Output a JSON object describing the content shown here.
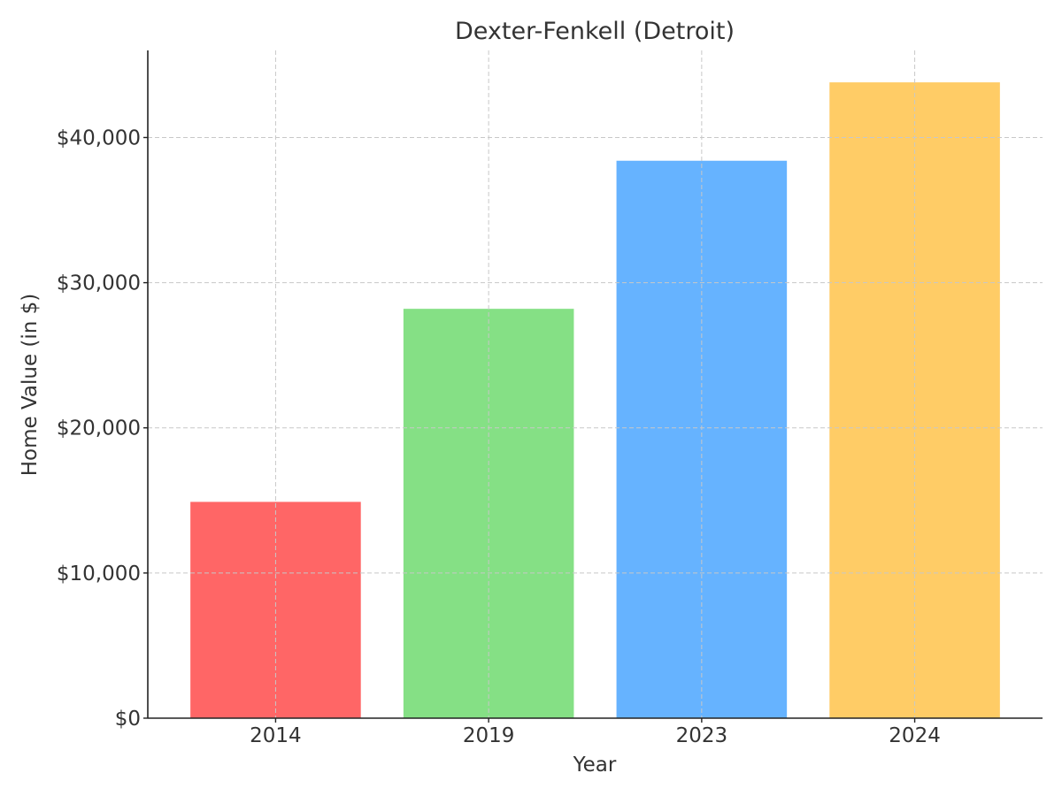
{
  "chart_data": {
    "type": "bar",
    "title": "Dexter-Fenkell (Detroit)",
    "xlabel": "Year",
    "ylabel": "Home Value (in $)",
    "categories": [
      "2014",
      "2019",
      "2023",
      "2024"
    ],
    "values": [
      14900,
      28200,
      38400,
      43800
    ],
    "colors": [
      "#ff6666",
      "#85e085",
      "#66b3ff",
      "#ffcc66"
    ],
    "ylim": [
      0,
      46000
    ],
    "yticks": [
      0,
      10000,
      20000,
      30000,
      40000
    ],
    "ytick_labels": [
      "$0",
      "$10,000",
      "$20,000",
      "$30,000",
      "$40,000"
    ],
    "grid": true,
    "legend": "none"
  }
}
